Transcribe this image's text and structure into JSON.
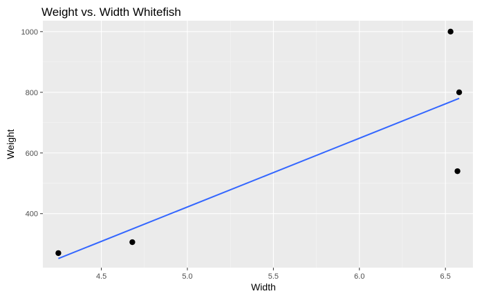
{
  "chart_data": {
    "type": "scatter",
    "title": "Weight vs. Width Whitefish",
    "xlabel": "Width",
    "ylabel": "Weight",
    "xlim": [
      4.16,
      6.66
    ],
    "ylim": [
      222,
      1036
    ],
    "x_ticks": [
      4.5,
      5.0,
      5.5,
      6.0,
      6.5
    ],
    "x_tick_labels": [
      "4.5",
      "5.0",
      "5.5",
      "6.0",
      "6.5"
    ],
    "y_ticks": [
      400,
      600,
      800,
      1000
    ],
    "y_tick_labels": [
      "400",
      "600",
      "800",
      "1000"
    ],
    "grid": true,
    "points": [
      {
        "x": 4.25,
        "y": 270
      },
      {
        "x": 4.68,
        "y": 306
      },
      {
        "x": 6.53,
        "y": 1000
      },
      {
        "x": 6.58,
        "y": 800
      },
      {
        "x": 6.57,
        "y": 540
      }
    ],
    "trend_line": {
      "type": "linear-fit",
      "x": [
        4.25,
        6.58
      ],
      "y": [
        252,
        780
      ]
    },
    "colors": {
      "panel": "#ebebeb",
      "grid_major": "#ffffff",
      "grid_minor": "#f5f5f5",
      "point": "#000000",
      "trend_line": "#3366ff",
      "tick_label": "#4d4d4d",
      "tick_mark": "#333333"
    }
  }
}
